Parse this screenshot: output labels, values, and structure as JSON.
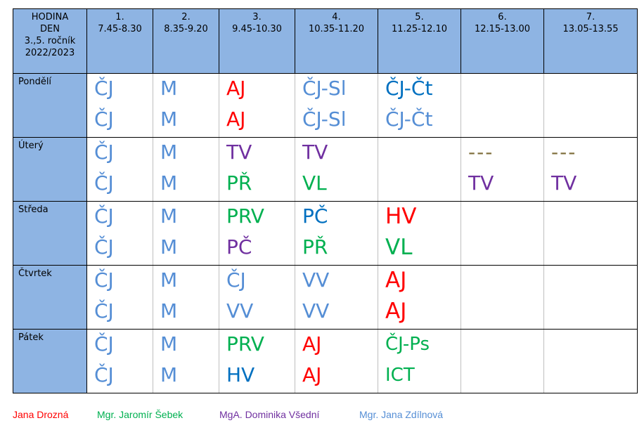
{
  "colors": {
    "red": "#ff0000",
    "green": "#00b050",
    "purple": "#7030a0",
    "blue": "#0070c0",
    "lightblue": "#558ed5",
    "olive": "#7f6f3c",
    "header_bg": "#8eb4e3"
  },
  "header": {
    "corner": [
      "HODINA",
      "DEN",
      "3.,5. ročník",
      "2022/2023"
    ],
    "periods": [
      {
        "num": "1.",
        "time": "7.45-8.30"
      },
      {
        "num": "2.",
        "time": "8.35-9.20"
      },
      {
        "num": "3.",
        "time": "9.45-10.30"
      },
      {
        "num": "4.",
        "time": "10.35-11.20"
      },
      {
        "num": "5.",
        "time": "11.25-12.10"
      },
      {
        "num": "6.",
        "time": "12.15-13.00"
      },
      {
        "num": "7.",
        "time": "13.05-13.55"
      }
    ]
  },
  "days": [
    {
      "name": "Pondělí",
      "cells": [
        {
          "top": {
            "t": "ČJ",
            "c": "lightblue"
          },
          "bottom": {
            "t": "ČJ",
            "c": "lightblue"
          }
        },
        {
          "top": {
            "t": "M",
            "c": "lightblue"
          },
          "bottom": {
            "t": "M",
            "c": "lightblue"
          }
        },
        {
          "top": {
            "t": "AJ",
            "c": "red"
          },
          "bottom": {
            "t": "AJ",
            "c": "red"
          }
        },
        {
          "top": {
            "t": "ČJ-Sl",
            "c": "lightblue"
          },
          "bottom": {
            "t": "ČJ-Sl",
            "c": "lightblue"
          }
        },
        {
          "top": {
            "t": "ČJ-Čt",
            "c": "blue"
          },
          "bottom": {
            "t": "ČJ-Čt",
            "c": "lightblue"
          }
        },
        {
          "top": null,
          "bottom": null
        },
        {
          "top": null,
          "bottom": null
        }
      ]
    },
    {
      "name": "Úterý",
      "cells": [
        {
          "top": {
            "t": "ČJ",
            "c": "lightblue"
          },
          "bottom": {
            "t": "ČJ",
            "c": "lightblue"
          }
        },
        {
          "top": {
            "t": "M",
            "c": "lightblue"
          },
          "bottom": {
            "t": "M",
            "c": "lightblue"
          }
        },
        {
          "top": {
            "t": "TV",
            "c": "purple"
          },
          "bottom": {
            "t": "PŘ",
            "c": "green"
          }
        },
        {
          "top": {
            "t": "TV",
            "c": "purple"
          },
          "bottom": {
            "t": "VL",
            "c": "green"
          }
        },
        {
          "top": null,
          "bottom": null
        },
        {
          "top": {
            "t": "---",
            "c": "olive"
          },
          "bottom": {
            "t": "TV",
            "c": "purple"
          }
        },
        {
          "top": {
            "t": "---",
            "c": "olive"
          },
          "bottom": {
            "t": "TV",
            "c": "purple"
          }
        }
      ]
    },
    {
      "name": "Středa",
      "cells": [
        {
          "top": {
            "t": "ČJ",
            "c": "lightblue"
          },
          "bottom": {
            "t": "ČJ",
            "c": "lightblue"
          }
        },
        {
          "top": {
            "t": "M",
            "c": "lightblue"
          },
          "bottom": {
            "t": "M",
            "c": "lightblue"
          }
        },
        {
          "top": {
            "t": "PRV",
            "c": "green"
          },
          "bottom": {
            "t": "PČ",
            "c": "purple"
          }
        },
        {
          "top": {
            "t": "PČ",
            "c": "blue"
          },
          "bottom": {
            "t": "PŘ",
            "c": "green"
          }
        },
        {
          "top": {
            "t": "HV",
            "c": "red"
          },
          "bottom": {
            "t": "VL",
            "c": "green"
          }
        },
        {
          "top": null,
          "bottom": null
        },
        {
          "top": null,
          "bottom": null
        }
      ]
    },
    {
      "name": "Čtvrtek",
      "cells": [
        {
          "top": {
            "t": "ČJ",
            "c": "lightblue"
          },
          "bottom": {
            "t": "ČJ",
            "c": "lightblue"
          }
        },
        {
          "top": {
            "t": "M",
            "c": "lightblue"
          },
          "bottom": {
            "t": "M",
            "c": "lightblue"
          }
        },
        {
          "top": {
            "t": "ČJ",
            "c": "lightblue"
          },
          "bottom": {
            "t": "VV",
            "c": "lightblue"
          }
        },
        {
          "top": {
            "t": "VV",
            "c": "lightblue"
          },
          "bottom": {
            "t": "VV",
            "c": "lightblue"
          }
        },
        {
          "top": {
            "t": "AJ",
            "c": "red"
          },
          "bottom": {
            "t": "AJ",
            "c": "red"
          }
        },
        {
          "top": null,
          "bottom": null
        },
        {
          "top": null,
          "bottom": null
        }
      ]
    },
    {
      "name": "Pátek",
      "cells": [
        {
          "top": {
            "t": "ČJ",
            "c": "lightblue"
          },
          "bottom": {
            "t": "ČJ",
            "c": "lightblue"
          }
        },
        {
          "top": {
            "t": "M",
            "c": "lightblue"
          },
          "bottom": {
            "t": "M",
            "c": "lightblue"
          }
        },
        {
          "top": {
            "t": "PRV",
            "c": "green"
          },
          "bottom": {
            "t": "HV",
            "c": "blue"
          }
        },
        {
          "top": {
            "t": "AJ",
            "c": "red"
          },
          "bottom": {
            "t": "AJ",
            "c": "red"
          }
        },
        {
          "top": {
            "t": "ČJ-Ps",
            "c": "green"
          },
          "bottom": {
            "t": "ICT",
            "c": "green"
          }
        },
        {
          "top": null,
          "bottom": null
        },
        {
          "top": null,
          "bottom": null
        }
      ]
    }
  ],
  "legend": [
    {
      "name": "Jana Drozná",
      "c": "red"
    },
    {
      "name": "Mgr. Jaromír Šebek",
      "c": "green"
    },
    {
      "name": "MgA. Dominika Všední",
      "c": "purple"
    },
    {
      "name": "Mgr. Jana Zdílnová",
      "c": "lightblue"
    }
  ]
}
